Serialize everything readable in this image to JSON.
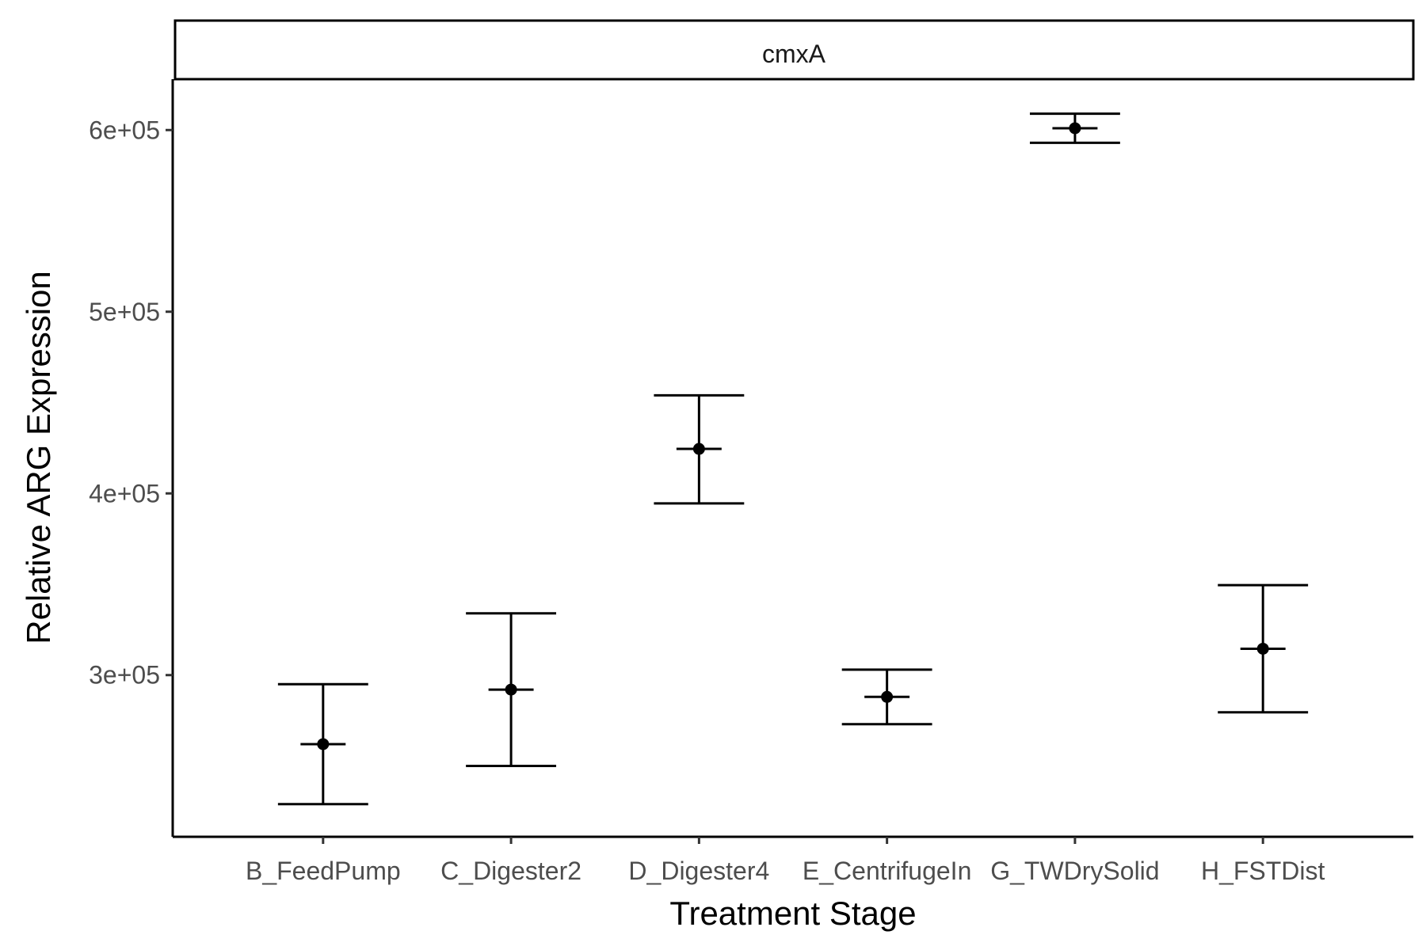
{
  "chart_data": {
    "type": "scatter",
    "facet_label": "cmxA",
    "xlabel": "Treatment Stage",
    "ylabel": "Relative ARG Expression",
    "categories": [
      "B_FeedPump",
      "C_Digester2",
      "D_Digester4",
      "E_CentrifugeIn",
      "G_TWDrySolid",
      "H_FSTDist"
    ],
    "values": [
      262000,
      292000,
      424500,
      288000,
      601000,
      314500
    ],
    "error_low": [
      229000,
      250000,
      394500,
      273000,
      593000,
      279500
    ],
    "error_high": [
      295000,
      334000,
      454000,
      303000,
      609000,
      349500
    ],
    "yticks": [
      300000,
      400000,
      500000,
      600000
    ],
    "ytick_labels": [
      "3e+05",
      "4e+05",
      "5e+05",
      "6e+05"
    ],
    "ylim": [
      211000,
      628000
    ],
    "grid": false,
    "color": "#000000"
  }
}
